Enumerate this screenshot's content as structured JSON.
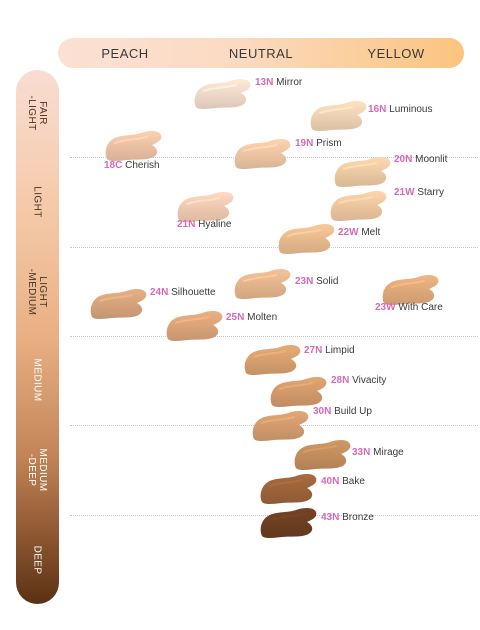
{
  "header": {
    "labels": [
      "PEACH",
      "NEUTRAL",
      "YELLOW"
    ]
  },
  "sidebar": {
    "labels": [
      "FAIR\n-LIGHT",
      "LIGHT",
      "LIGHT\n-MEDIUM",
      "MEDIUM",
      "MEDIUM\n-DEEP",
      "DEEP"
    ]
  },
  "shades": [
    {
      "code": "13N",
      "name": "Mirror",
      "color": "#f4dccb"
    },
    {
      "code": "16N",
      "name": "Luminous",
      "color": "#f2d5b6"
    },
    {
      "code": "18C",
      "name": "Cherish",
      "color": "#efc4a8"
    },
    {
      "code": "19N",
      "name": "Prism",
      "color": "#f0c8a6"
    },
    {
      "code": "20N",
      "name": "Moonlit",
      "color": "#f0cda4"
    },
    {
      "code": "21W",
      "name": "Starry",
      "color": "#f1c9a2"
    },
    {
      "code": "21N",
      "name": "Hyaline",
      "color": "#f6cdb5"
    },
    {
      "code": "22W",
      "name": "Melt",
      "color": "#ebbe90"
    },
    {
      "code": "23N",
      "name": "Solid",
      "color": "#e8b88e"
    },
    {
      "code": "23W",
      "name": "With Care",
      "color": "#e2ac7c"
    },
    {
      "code": "24N",
      "name": "Silhouette",
      "color": "#d9a67d"
    },
    {
      "code": "25N",
      "name": "Molten",
      "color": "#dea67c"
    },
    {
      "code": "27N",
      "name": "Limpid",
      "color": "#daa270"
    },
    {
      "code": "28N",
      "name": "Vivacity",
      "color": "#d59c6c"
    },
    {
      "code": "30N",
      "name": "Build Up",
      "color": "#d59e70"
    },
    {
      "code": "33N",
      "name": "Mirage",
      "color": "#c58f5f"
    },
    {
      "code": "40N",
      "name": "Bake",
      "color": "#9e653b"
    },
    {
      "code": "43N",
      "name": "Bronze",
      "color": "#6e3f22"
    }
  ]
}
